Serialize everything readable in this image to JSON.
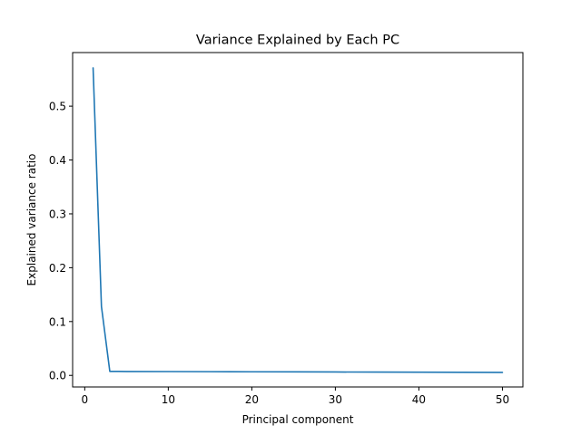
{
  "chart_data": {
    "type": "line",
    "title": "Variance Explained by Each PC",
    "xlabel": "Principal component",
    "ylabel": "Explained variance ratio",
    "xlim": [
      -1.45,
      52.45
    ],
    "ylim": [
      -0.0215,
      0.5995
    ],
    "xticks": [
      0,
      10,
      20,
      30,
      40,
      50
    ],
    "yticks": [
      0.0,
      0.1,
      0.2,
      0.3,
      0.4,
      0.5
    ],
    "ytick_labels": [
      "0.0",
      "0.1",
      "0.2",
      "0.3",
      "0.4",
      "0.5"
    ],
    "grid": false,
    "series": [
      {
        "color": "#1f77b4",
        "x": [
          1,
          2,
          3,
          4,
          5,
          10,
          15,
          20,
          25,
          30,
          35,
          40,
          45,
          50
        ],
        "y": [
          0.571,
          0.128,
          0.0075,
          0.0074,
          0.0073,
          0.0071,
          0.0069,
          0.0067,
          0.0065,
          0.0063,
          0.0061,
          0.0059,
          0.0057,
          0.0055
        ]
      }
    ]
  }
}
